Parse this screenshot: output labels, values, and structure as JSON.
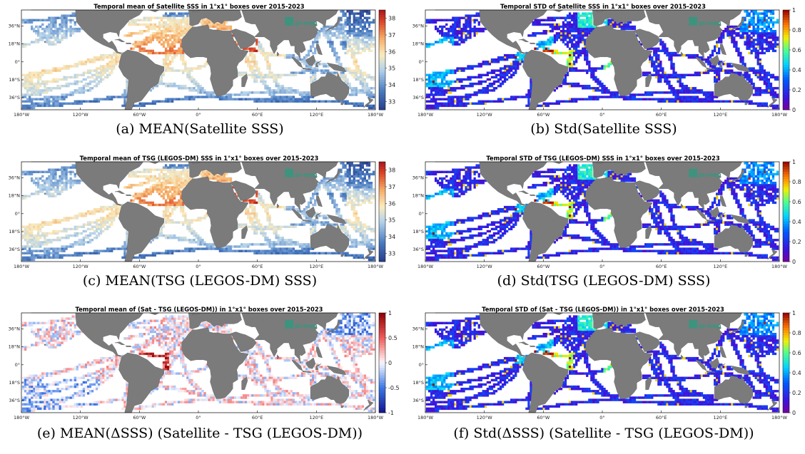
{
  "colors": {
    "land": "#7b7b7b",
    "ocean": "#ffffff",
    "frame": "#000000",
    "logo": "#2e9a7f"
  },
  "axes": {
    "lon_ticks": [
      "180°W",
      "120°W",
      "60°W",
      "0°",
      "60°E",
      "120°E",
      "180°W"
    ],
    "lat_ticks": [
      "36°N",
      "18°N",
      "0°",
      "18°S",
      "36°S"
    ]
  },
  "logo": {
    "line1": "",
    "line2": "pi-mep"
  },
  "panels": [
    {
      "id": "a",
      "title": "Temporal mean of Satellite SSS in 1°x1° boxes over 2015-2023",
      "caption": "(a) MEAN(Satellite SSS)",
      "colormap": "redblue",
      "cbar_ticks": [
        "38",
        "37",
        "36",
        "35",
        "34",
        "33"
      ],
      "cbar_range": [
        32.5,
        38.5
      ]
    },
    {
      "id": "b",
      "title": "Temporal STD of Satellite SSS in 1°x1° boxes over 2015-2023",
      "caption": "(b) Std(Satellite SSS)",
      "colormap": "jet",
      "cbar_ticks": [
        "1",
        "0.8",
        "0.6",
        "0.4",
        "0.2",
        "0"
      ],
      "cbar_range": [
        0,
        1
      ]
    },
    {
      "id": "c",
      "title": "Temporal mean of TSG (LEGOS-DM) SSS in 1°x1° boxes over 2015-2023",
      "caption": "(c) MEAN(TSG (LEGOS-DM) SSS)",
      "colormap": "redblue",
      "cbar_ticks": [
        "38",
        "37",
        "36",
        "35",
        "34",
        "33"
      ],
      "cbar_range": [
        32.5,
        38.5
      ]
    },
    {
      "id": "d",
      "title": "Temporal STD of TSG (LEGOS-DM) SSS in 1°x1° boxes over 2015-2023",
      "caption": "(d) Std(TSG (LEGOS-DM) SSS)",
      "colormap": "jet",
      "cbar_ticks": [
        "1",
        "0.8",
        "0.6",
        "0.4",
        "0.2",
        "0"
      ],
      "cbar_range": [
        0,
        1
      ]
    },
    {
      "id": "e",
      "title": "Temporal mean of (Sat - TSG (LEGOS-DM)) in 1°x1° boxes over 2015-2023",
      "caption": "(e) MEAN(ΔSSS) (Satellite - TSG (LEGOS-DM))",
      "colormap": "diverging",
      "cbar_ticks": [
        "1",
        "0.5",
        "0",
        "-0.5",
        "-1"
      ],
      "cbar_range": [
        -1,
        1
      ]
    },
    {
      "id": "f",
      "title": "Temporal STD of (Sat - TSG (LEGOS-DM)) in 1°x1° boxes over 2015-2023",
      "caption": "(f) Std(ΔSSS) (Satellite - TSG (LEGOS-DM))",
      "colormap": "jet",
      "cbar_ticks": [
        "1",
        "0.8",
        "0.6",
        "0.4",
        "0.2",
        "0"
      ],
      "cbar_range": [
        0,
        1
      ]
    }
  ]
}
